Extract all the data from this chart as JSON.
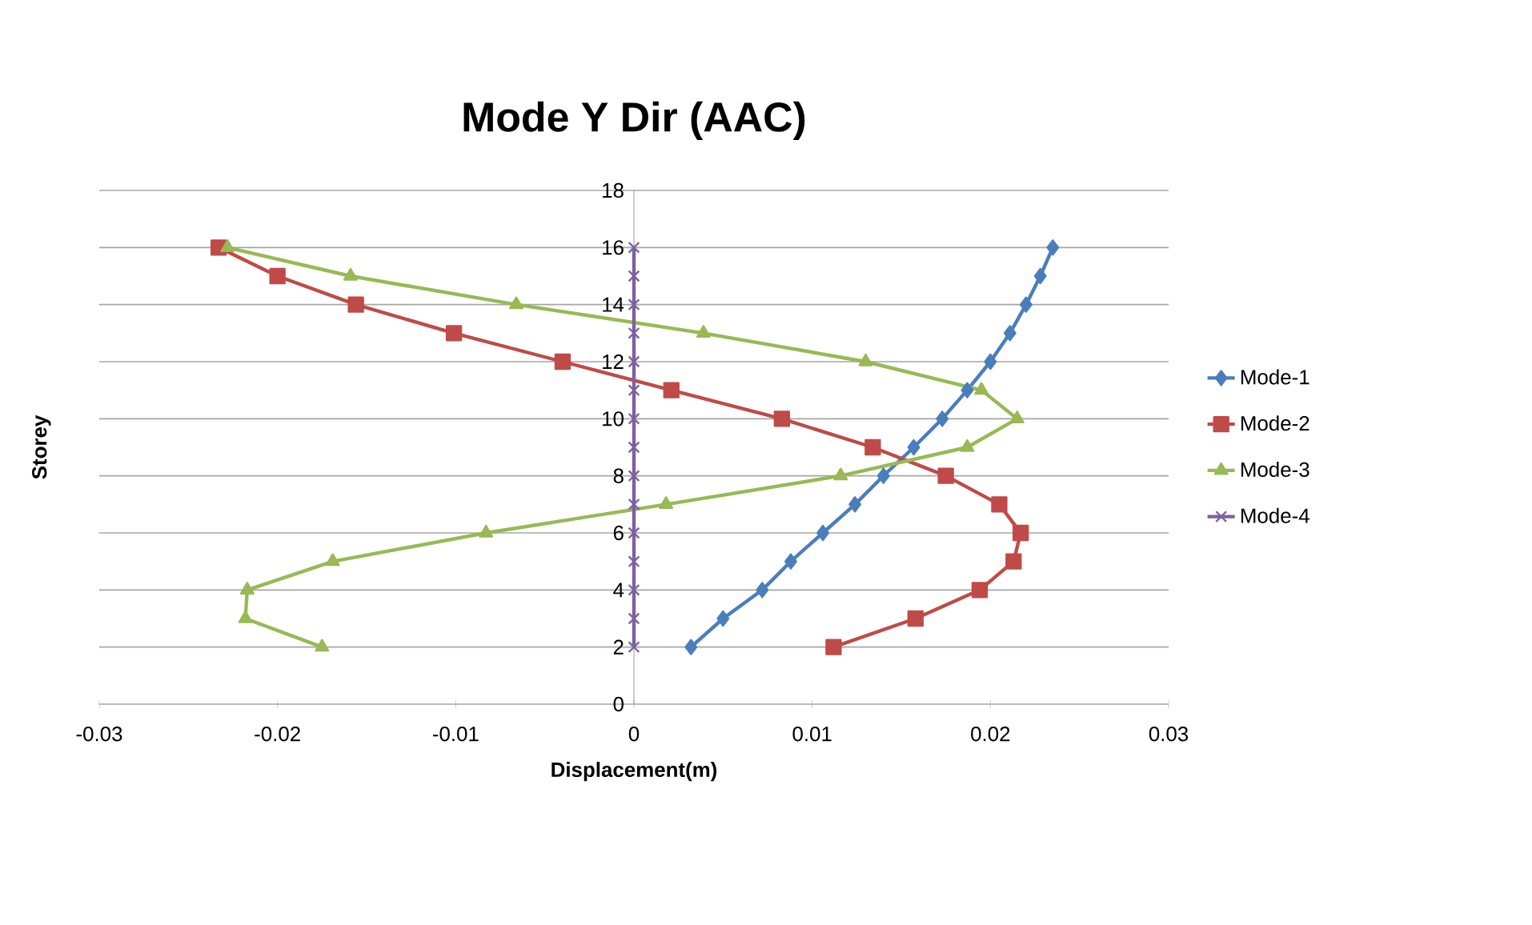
{
  "chart_data": {
    "type": "line",
    "title": "Mode Y Dir (AAC)",
    "xlabel": "Displacement(m)",
    "ylabel": "Storey",
    "xlim": [
      -0.03,
      0.03
    ],
    "xticks": [
      -0.03,
      -0.02,
      -0.01,
      0,
      0.01,
      0.02,
      0.03
    ],
    "ylim": [
      0,
      18
    ],
    "yticks": [
      0,
      2,
      4,
      6,
      8,
      10,
      12,
      14,
      16,
      18
    ],
    "grid": "y",
    "legend": "right",
    "series": [
      {
        "name": "Mode-1",
        "color": "#4a7ebb",
        "marker": "diamond",
        "x": [
          0.0032,
          0.005,
          0.0072,
          0.0088,
          0.0106,
          0.0124,
          0.014,
          0.0157,
          0.0173,
          0.0187,
          0.02,
          0.0211,
          0.022,
          0.0228,
          0.0235
        ],
        "values": [
          2,
          3,
          4,
          5,
          6,
          7,
          8,
          9,
          10,
          11,
          12,
          13,
          14,
          15,
          16
        ]
      },
      {
        "name": "Mode-2",
        "color": "#be4b48",
        "marker": "square",
        "x": [
          0.0112,
          0.0158,
          0.0194,
          0.0213,
          0.0217,
          0.0205,
          0.0175,
          0.0134,
          0.0083,
          0.0021,
          -0.004,
          -0.0101,
          -0.0156,
          -0.02,
          -0.0233
        ],
        "values": [
          2,
          3,
          4,
          5,
          6,
          7,
          8,
          9,
          10,
          11,
          12,
          13,
          14,
          15,
          16
        ]
      },
      {
        "name": "Mode-3",
        "color": "#98b954",
        "marker": "triangle",
        "x": [
          -0.0175,
          -0.0218,
          -0.0217,
          -0.0169,
          -0.0083,
          0.0018,
          0.0116,
          0.0187,
          0.0215,
          0.0195,
          0.013,
          0.0039,
          -0.0066,
          -0.0159,
          -0.0228
        ],
        "values": [
          2,
          3,
          4,
          5,
          6,
          7,
          8,
          9,
          10,
          11,
          12,
          13,
          14,
          15,
          16
        ]
      },
      {
        "name": "Mode-4",
        "color": "#7d60a0",
        "marker": "cross",
        "x": [
          0,
          0,
          0,
          0,
          0,
          0,
          0,
          0,
          0,
          0,
          0,
          0,
          0,
          0,
          0
        ],
        "values": [
          2,
          3,
          4,
          5,
          6,
          7,
          8,
          9,
          10,
          11,
          12,
          13,
          14,
          15,
          16
        ]
      }
    ]
  }
}
